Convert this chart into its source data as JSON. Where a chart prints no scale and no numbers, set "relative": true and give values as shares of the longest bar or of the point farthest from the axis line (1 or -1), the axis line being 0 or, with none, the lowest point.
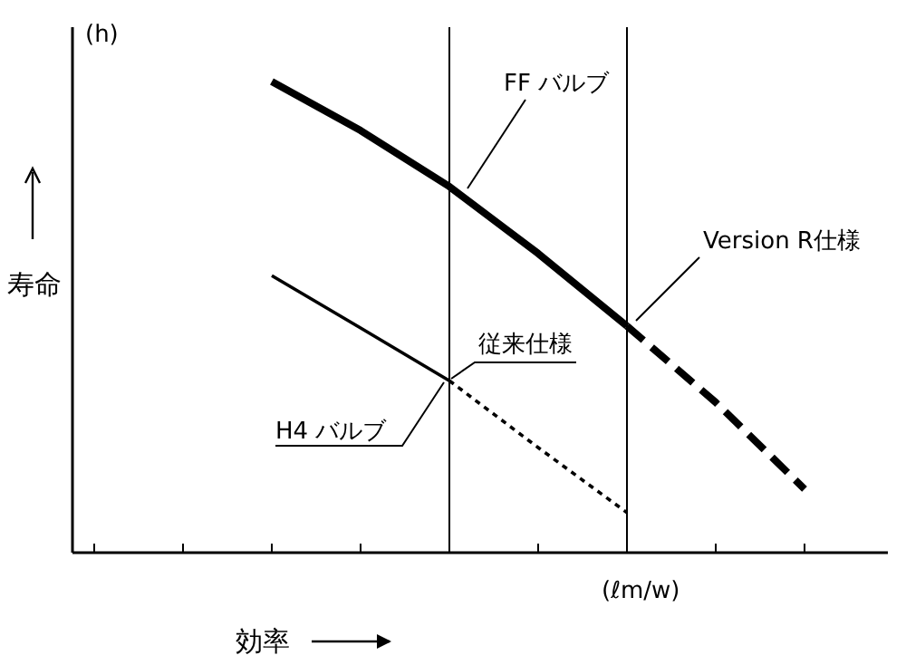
{
  "chart_data": {
    "type": "line",
    "relative": true,
    "xlabel": "効率",
    "ylabel": "寿命",
    "categories": [
      null,
      null,
      null,
      null,
      null,
      null,
      null,
      null,
      null
    ],
    "series": [
      {
        "color": "#000000",
        "line_style": "solid",
        "values": [
          null,
          null,
          1,
          0.896,
          0.777,
          0.635,
          0.481,
          null,
          null
        ]
      },
      {
        "color": "#000000",
        "line_style": "dashed",
        "values": [
          null,
          null,
          null,
          null,
          null,
          null,
          0.481,
          0.319,
          0.135
        ]
      },
      {
        "color": "#000000",
        "line_style": "solid",
        "values": [
          null,
          null,
          0.588,
          0.477,
          0.365,
          null,
          null,
          null,
          null
        ]
      },
      {
        "color": "#000000",
        "line_style": "dotted",
        "values": [
          null,
          null,
          null,
          null,
          0.365,
          0.223,
          0.085,
          null,
          null
        ]
      }
    ],
    "annotations": [
      "(h)",
      "(ℓm/w)",
      "FF バルブ",
      "Version R仕様",
      "従来仕様",
      "H4 バルブ"
    ]
  }
}
